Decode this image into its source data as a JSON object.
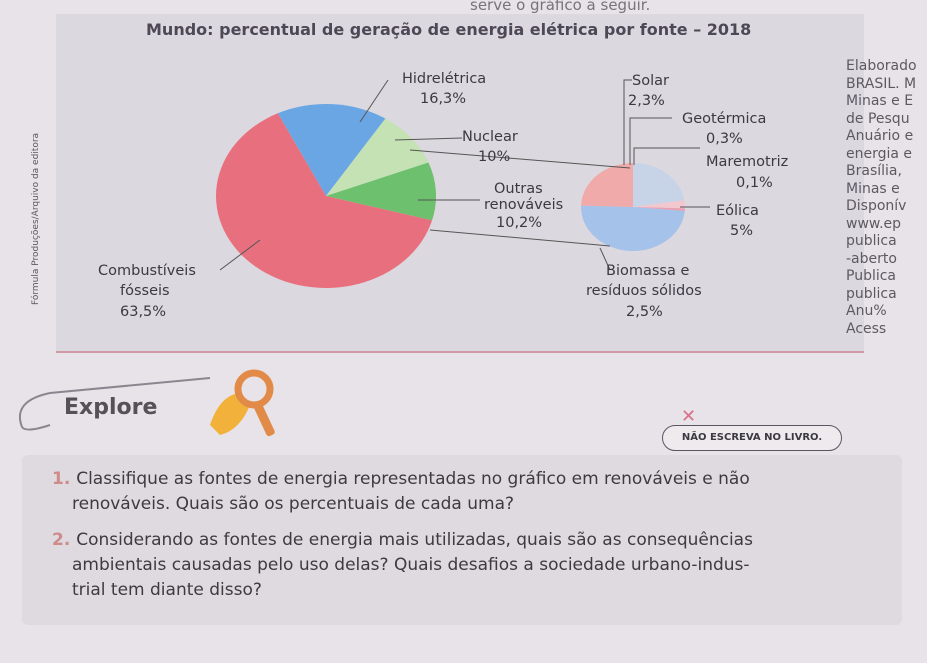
{
  "top_note": "serve o gráfico a seguir.",
  "chart_data": {
    "type": "pie",
    "title": "Mundo: percentual de geração de energia elétrica por fonte – 2018",
    "main_slices": [
      {
        "name": "Hidrelétrica",
        "value_label": "16,3%",
        "value": 16.3,
        "color": "#6aa6e3"
      },
      {
        "name": "Nuclear",
        "value_label": "10%",
        "value": 10.0,
        "color": "#c4e2b3"
      },
      {
        "name": "Outras renováveis",
        "value_label": "10,2%",
        "value": 10.2,
        "color": "#6dc06d"
      },
      {
        "name": "Combustíveis fósseis",
        "value_label": "63,5%",
        "value": 63.5,
        "color": "#e8707e"
      }
    ],
    "detail_slices": [
      {
        "name": "Solar",
        "value_label": "2,3%",
        "value": 2.3,
        "color": "#c7d4e8"
      },
      {
        "name": "Geotérmica",
        "value_label": "0,3%",
        "value": 0.3,
        "color": "#f2c7ce"
      },
      {
        "name": "Maremotriz",
        "value_label": "0,1%",
        "value": 0.1,
        "color": "#e9a0b1"
      },
      {
        "name": "Eólica",
        "value_label": "5%",
        "value": 5.0,
        "color": "#a5c2ea"
      },
      {
        "name": "Biomassa e resíduos sólidos",
        "value_label": "2,5%",
        "value": 2.5,
        "color": "#f1aaaa"
      }
    ],
    "labels": {
      "hidro": "Hidrelétrica",
      "hidro_v": "16,3%",
      "nuclear": "Nuclear",
      "nuclear_v": "10%",
      "outras_1": "Outras",
      "outras_2": "renováveis",
      "outras_v": "10,2%",
      "comb_1": "Combustíveis",
      "comb_2": "fósseis",
      "comb_v": "63,5%",
      "solar": "Solar",
      "solar_v": "2,3%",
      "geo": "Geotérmica",
      "geo_v": "0,3%",
      "mare": "Maremotriz",
      "mare_v": "0,1%",
      "eolica": "Eólica",
      "eolica_v": "5%",
      "bio_1": "Biomassa e",
      "bio_2": "resíduos sólidos",
      "bio_v": "2,5%"
    }
  },
  "side_credit": "Fórmula Produções/Arquivo da editora",
  "source_lines": [
    "Elaborado",
    "BRASIL. M",
    "Minas e E",
    "de Pesqu",
    "Anuário e",
    "energia e",
    "Brasília,",
    "Minas e",
    "Disponív",
    "www.ep",
    "publica",
    "-aberto",
    "Publica",
    "publica",
    "Anu%",
    "Acess"
  ],
  "explore": {
    "title": "Explore",
    "badge": "NÃO ESCREVA NO LIVRO."
  },
  "questions": [
    {
      "num": "1.",
      "lines": [
        "Classifique as fontes de energia representadas no gráfico em renováveis e não",
        "renováveis. Quais são os percentuais de cada uma?"
      ]
    },
    {
      "num": "2.",
      "lines": [
        "Considerando as fontes de energia mais utilizadas, quais são as consequências",
        "ambientais causadas pelo uso delas? Quais desafios a sociedade urbano-indus-",
        "trial tem diante disso?"
      ]
    }
  ],
  "colors": {
    "accent": "#cf8a8a",
    "hand_icon": "#f2b13b"
  }
}
